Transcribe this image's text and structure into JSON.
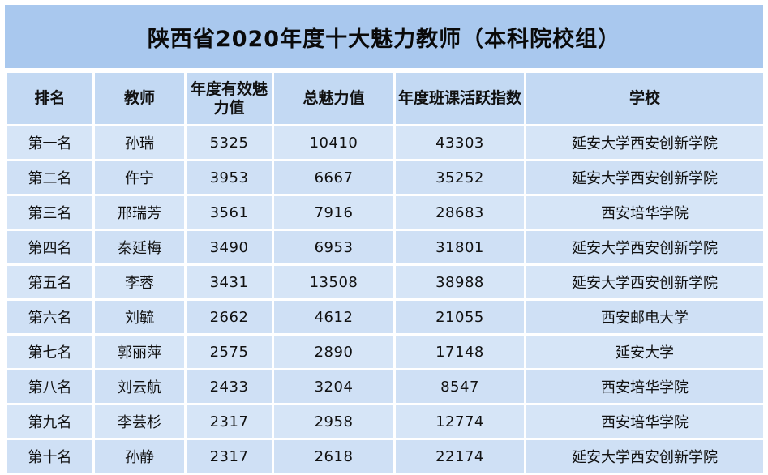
{
  "title": "陕西省2020年度十大魅力教师（本科院校组）",
  "columns": [
    "排名",
    "教师",
    "年度有效魅力值",
    "总魅力值",
    "年度班课活跃指数",
    "学校"
  ],
  "rows": [
    {
      "rank": "第一名",
      "teacher": "孙瑞",
      "annual": "5325",
      "total": "10410",
      "activity": "43303",
      "school": "延安大学西安创新学院"
    },
    {
      "rank": "第二名",
      "teacher": "仵宁",
      "annual": "3953",
      "total": "6667",
      "activity": "35252",
      "school": "延安大学西安创新学院"
    },
    {
      "rank": "第三名",
      "teacher": "邢瑞芳",
      "annual": "3561",
      "total": "7916",
      "activity": "28683",
      "school": "西安培华学院"
    },
    {
      "rank": "第四名",
      "teacher": "秦延梅",
      "annual": "3490",
      "total": "6953",
      "activity": "31801",
      "school": "延安大学西安创新学院"
    },
    {
      "rank": "第五名",
      "teacher": "李蓉",
      "annual": "3431",
      "total": "13508",
      "activity": "38988",
      "school": "延安大学西安创新学院"
    },
    {
      "rank": "第六名",
      "teacher": "刘毓",
      "annual": "2662",
      "total": "4612",
      "activity": "21055",
      "school": "西安邮电大学"
    },
    {
      "rank": "第七名",
      "teacher": "郭丽萍",
      "annual": "2575",
      "total": "2890",
      "activity": "17148",
      "school": "延安大学"
    },
    {
      "rank": "第八名",
      "teacher": "刘云航",
      "annual": "2433",
      "total": "3204",
      "activity": "8547",
      "school": "西安培华学院"
    },
    {
      "rank": "第九名",
      "teacher": "李芸杉",
      "annual": "2317",
      "total": "2958",
      "activity": "12774",
      "school": "西安培华学院"
    },
    {
      "rank": "第十名",
      "teacher": "孙静",
      "annual": "2317",
      "total": "2618",
      "activity": "22174",
      "school": "延安大学西安创新学院"
    }
  ]
}
